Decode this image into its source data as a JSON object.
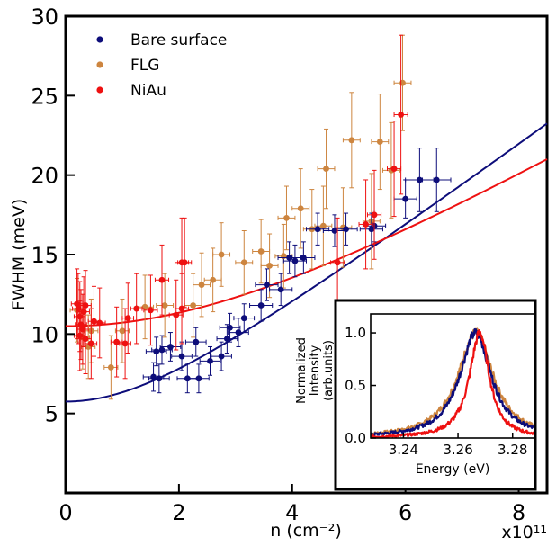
{
  "chart_data": {
    "type": "scatter",
    "xlabel": "n (cm⁻²)",
    "ylabel": "FWHM (meV)",
    "x_multiplier_label": "x10¹¹",
    "xlim": [
      0,
      8.5
    ],
    "ylim": [
      0,
      30
    ],
    "x_ticks": [
      "0",
      "2",
      "4",
      "6",
      "8"
    ],
    "y_ticks": [
      "5",
      "10",
      "15",
      "20",
      "25",
      "30"
    ],
    "legend_position": "top-left",
    "grid": false,
    "series": [
      {
        "name": "Bare surface",
        "color": "#0d0d7a",
        "points": [
          {
            "x": 1.55,
            "y": 7.3,
            "ey": 0.9,
            "ex": 0.18
          },
          {
            "x": 1.65,
            "y": 7.2,
            "ey": 0.9,
            "ex": 0.18
          },
          {
            "x": 1.6,
            "y": 8.9,
            "ey": 0.9,
            "ex": 0.18
          },
          {
            "x": 1.7,
            "y": 9.0,
            "ey": 0.9,
            "ex": 0.18
          },
          {
            "x": 1.85,
            "y": 9.2,
            "ey": 0.9,
            "ex": 0.18
          },
          {
            "x": 2.05,
            "y": 8.6,
            "ey": 0.9,
            "ex": 0.18
          },
          {
            "x": 2.15,
            "y": 7.2,
            "ey": 0.9,
            "ex": 0.18
          },
          {
            "x": 2.35,
            "y": 7.2,
            "ey": 0.9,
            "ex": 0.18
          },
          {
            "x": 2.3,
            "y": 9.5,
            "ey": 0.9,
            "ex": 0.18
          },
          {
            "x": 2.55,
            "y": 8.3,
            "ey": 0.9,
            "ex": 0.18
          },
          {
            "x": 2.75,
            "y": 8.6,
            "ey": 0.9,
            "ex": 0.18
          },
          {
            "x": 2.85,
            "y": 9.7,
            "ey": 0.9,
            "ex": 0.18
          },
          {
            "x": 2.9,
            "y": 10.4,
            "ey": 0.9,
            "ex": 0.18
          },
          {
            "x": 3.05,
            "y": 10.1,
            "ey": 0.9,
            "ex": 0.18
          },
          {
            "x": 3.15,
            "y": 11.0,
            "ey": 0.9,
            "ex": 0.18
          },
          {
            "x": 3.45,
            "y": 11.8,
            "ey": 1.0,
            "ex": 0.2
          },
          {
            "x": 3.55,
            "y": 13.1,
            "ey": 1.0,
            "ex": 0.2
          },
          {
            "x": 3.8,
            "y": 12.8,
            "ey": 1.0,
            "ex": 0.2
          },
          {
            "x": 3.95,
            "y": 14.8,
            "ey": 1.0,
            "ex": 0.2
          },
          {
            "x": 4.05,
            "y": 14.6,
            "ey": 1.0,
            "ex": 0.2
          },
          {
            "x": 4.2,
            "y": 14.8,
            "ey": 1.0,
            "ex": 0.2
          },
          {
            "x": 4.45,
            "y": 16.6,
            "ey": 1.0,
            "ex": 0.2
          },
          {
            "x": 4.75,
            "y": 16.5,
            "ey": 1.0,
            "ex": 0.2
          },
          {
            "x": 4.95,
            "y": 16.6,
            "ey": 1.0,
            "ex": 0.2
          },
          {
            "x": 5.4,
            "y": 16.6,
            "ey": 1.0,
            "ex": 0.2
          },
          {
            "x": 5.45,
            "y": 16.8,
            "ey": 1.0,
            "ex": 0.2
          },
          {
            "x": 6.0,
            "y": 18.5,
            "ey": 1.2,
            "ex": 0.2
          },
          {
            "x": 6.25,
            "y": 19.7,
            "ey": 2.0,
            "ex": 0.25
          },
          {
            "x": 6.55,
            "y": 19.7,
            "ey": 2.0,
            "ex": 0.25
          }
        ]
      },
      {
        "name": "FLG",
        "color": "#cd853f",
        "points": [
          {
            "x": 0.2,
            "y": 11.5,
            "ey": 2.0,
            "ex": 0.12
          },
          {
            "x": 0.3,
            "y": 9.8,
            "ey": 2.0,
            "ex": 0.12
          },
          {
            "x": 0.45,
            "y": 10.2,
            "ey": 2.0,
            "ex": 0.12
          },
          {
            "x": 0.4,
            "y": 9.2,
            "ey": 2.0,
            "ex": 0.12
          },
          {
            "x": 0.8,
            "y": 7.9,
            "ey": 2.0,
            "ex": 0.12
          },
          {
            "x": 1.0,
            "y": 10.2,
            "ey": 2.0,
            "ex": 0.12
          },
          {
            "x": 1.4,
            "y": 11.7,
            "ey": 2.0,
            "ex": 0.15
          },
          {
            "x": 1.75,
            "y": 11.8,
            "ey": 2.0,
            "ex": 0.15
          },
          {
            "x": 2.25,
            "y": 11.8,
            "ey": 2.0,
            "ex": 0.15
          },
          {
            "x": 2.4,
            "y": 13.1,
            "ey": 2.0,
            "ex": 0.15
          },
          {
            "x": 2.6,
            "y": 13.4,
            "ey": 2.0,
            "ex": 0.15
          },
          {
            "x": 2.75,
            "y": 15.0,
            "ey": 2.0,
            "ex": 0.15
          },
          {
            "x": 3.15,
            "y": 14.5,
            "ey": 2.0,
            "ex": 0.15
          },
          {
            "x": 3.45,
            "y": 15.2,
            "ey": 2.0,
            "ex": 0.15
          },
          {
            "x": 3.6,
            "y": 14.3,
            "ey": 2.0,
            "ex": 0.15
          },
          {
            "x": 3.85,
            "y": 14.9,
            "ey": 2.0,
            "ex": 0.15
          },
          {
            "x": 3.9,
            "y": 17.3,
            "ey": 2.0,
            "ex": 0.15
          },
          {
            "x": 4.15,
            "y": 17.9,
            "ey": 2.5,
            "ex": 0.15
          },
          {
            "x": 4.35,
            "y": 16.6,
            "ey": 2.5,
            "ex": 0.15
          },
          {
            "x": 4.55,
            "y": 16.8,
            "ey": 2.5,
            "ex": 0.15
          },
          {
            "x": 4.6,
            "y": 20.4,
            "ey": 2.5,
            "ex": 0.15
          },
          {
            "x": 4.9,
            "y": 16.7,
            "ey": 2.5,
            "ex": 0.15
          },
          {
            "x": 5.05,
            "y": 22.2,
            "ey": 3.0,
            "ex": 0.15
          },
          {
            "x": 5.4,
            "y": 17.1,
            "ey": 3.0,
            "ex": 0.15
          },
          {
            "x": 5.55,
            "y": 22.1,
            "ey": 3.0,
            "ex": 0.15
          },
          {
            "x": 5.75,
            "y": 20.3,
            "ey": 3.0,
            "ex": 0.15
          },
          {
            "x": 5.95,
            "y": 25.8,
            "ey": 3.0,
            "ex": 0.15
          }
        ]
      },
      {
        "name": "NiAu",
        "color": "#ee1111",
        "points": [
          {
            "x": 0.2,
            "y": 11.9,
            "ey": 2.2,
            "ex": 0.1
          },
          {
            "x": 0.22,
            "y": 11.6,
            "ey": 2.2,
            "ex": 0.1
          },
          {
            "x": 0.25,
            "y": 11.1,
            "ey": 2.2,
            "ex": 0.1
          },
          {
            "x": 0.27,
            "y": 10.6,
            "ey": 2.2,
            "ex": 0.1
          },
          {
            "x": 0.3,
            "y": 10.3,
            "ey": 2.2,
            "ex": 0.1
          },
          {
            "x": 0.32,
            "y": 11.4,
            "ey": 2.2,
            "ex": 0.1
          },
          {
            "x": 0.35,
            "y": 11.8,
            "ey": 2.2,
            "ex": 0.1
          },
          {
            "x": 0.25,
            "y": 9.9,
            "ey": 2.2,
            "ex": 0.1
          },
          {
            "x": 0.35,
            "y": 9.7,
            "ey": 2.2,
            "ex": 0.1
          },
          {
            "x": 0.45,
            "y": 9.4,
            "ey": 2.2,
            "ex": 0.1
          },
          {
            "x": 0.5,
            "y": 10.8,
            "ey": 2.2,
            "ex": 0.1
          },
          {
            "x": 0.6,
            "y": 10.7,
            "ey": 2.2,
            "ex": 0.1
          },
          {
            "x": 0.9,
            "y": 9.5,
            "ey": 2.2,
            "ex": 0.1
          },
          {
            "x": 1.05,
            "y": 9.4,
            "ey": 2.2,
            "ex": 0.1
          },
          {
            "x": 1.1,
            "y": 11.0,
            "ey": 2.2,
            "ex": 0.1
          },
          {
            "x": 1.25,
            "y": 11.6,
            "ey": 2.2,
            "ex": 0.1
          },
          {
            "x": 1.5,
            "y": 11.5,
            "ey": 2.2,
            "ex": 0.12
          },
          {
            "x": 1.7,
            "y": 13.4,
            "ey": 2.2,
            "ex": 0.12
          },
          {
            "x": 1.95,
            "y": 11.2,
            "ey": 2.2,
            "ex": 0.12
          },
          {
            "x": 2.05,
            "y": 11.6,
            "ey": 2.2,
            "ex": 0.12
          },
          {
            "x": 2.05,
            "y": 14.5,
            "ey": 2.8,
            "ex": 0.12
          },
          {
            "x": 2.1,
            "y": 14.5,
            "ey": 2.8,
            "ex": 0.12
          },
          {
            "x": 4.8,
            "y": 14.5,
            "ey": 2.8,
            "ex": 0.12
          },
          {
            "x": 5.3,
            "y": 16.9,
            "ey": 2.8,
            "ex": 0.12
          },
          {
            "x": 5.45,
            "y": 17.5,
            "ey": 2.8,
            "ex": 0.12
          },
          {
            "x": 5.8,
            "y": 20.4,
            "ey": 3.0,
            "ex": 0.12
          },
          {
            "x": 5.92,
            "y": 23.8,
            "ey": 5.0,
            "ex": 0.12
          }
        ]
      }
    ],
    "fits": [
      {
        "series": "Bare surface",
        "color": "#0d0d7a",
        "y0": 5.75,
        "k": 2.65,
        "xmax": 8.5
      },
      {
        "series": "NiAu",
        "color": "#ee1111",
        "y0": 10.5,
        "k": 2.14,
        "xmax": 8.5
      }
    ],
    "inset": {
      "xlabel": "Energy (eV)",
      "ylabel_lines": [
        "Normalized",
        "Intensity",
        "(arb.units)"
      ],
      "xlim": [
        3.228,
        3.288
      ],
      "ylim": [
        0.0,
        1.18
      ],
      "x_ticks": [
        "3.24",
        "3.26",
        "3.28"
      ],
      "y_ticks": [
        "0.0",
        "0.5",
        "1.0"
      ],
      "series": [
        {
          "name": "FLG",
          "color": "#cd853f",
          "center": 3.2665,
          "wl": 0.0095,
          "wr": 0.0092
        },
        {
          "name": "Bare surface",
          "color": "#0d0d7a",
          "center": 3.2665,
          "wl": 0.0085,
          "wr": 0.0082
        },
        {
          "name": "NiAu",
          "color": "#ee1111",
          "center": 3.268,
          "wl": 0.0055,
          "wr": 0.005
        }
      ]
    }
  }
}
